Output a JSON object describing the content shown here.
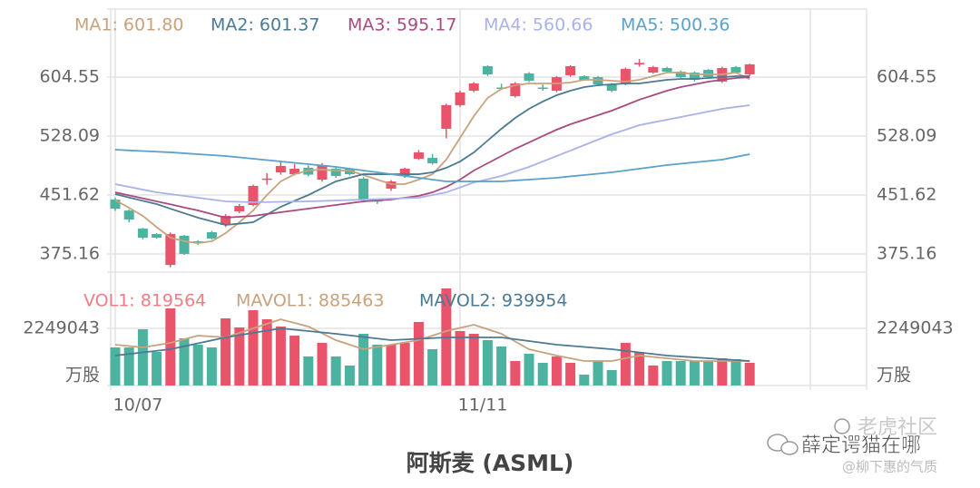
{
  "chart_data": {
    "type": "candlestick",
    "title": "阿斯麦 (ASML)",
    "categories": [
      "10/07",
      null,
      null,
      null,
      null,
      null,
      null,
      null,
      null,
      null,
      null,
      null,
      null,
      null,
      null,
      null,
      null,
      null,
      null,
      null,
      null,
      null,
      null,
      null,
      null,
      "11/11",
      null,
      null,
      null,
      null,
      null,
      null,
      null,
      null,
      null,
      null,
      null,
      null,
      null,
      null,
      null,
      null,
      null,
      null,
      null,
      null,
      null
    ],
    "open": [
      445.7,
      431.5,
      408.0,
      401.0,
      361.0,
      398.7,
      391.6,
      403.4,
      412.8,
      430.4,
      438.6,
      472.0,
      481.0,
      478.6,
      487.0,
      471.6,
      485.7,
      485.7,
      472.8,
      445.0,
      459.9,
      476.3,
      498.6,
      499.8,
      537.5,
      568.1,
      586.9,
      618.7,
      591.0,
      579.8,
      609.3,
      591.0,
      586.9,
      606.9,
      605.7,
      604.5,
      595.1,
      596.3,
      621.0,
      610.4,
      616.3,
      611.6,
      610.4,
      613.9,
      598.7,
      617.5,
      608.1
    ],
    "high": [
      448,
      433,
      409,
      402,
      403,
      400,
      393,
      405,
      427,
      440,
      465,
      480,
      496,
      492,
      490,
      493,
      488,
      487,
      475,
      447,
      471,
      487,
      510,
      505,
      570,
      587,
      598,
      620,
      596,
      598,
      611,
      595,
      606,
      620,
      607,
      606,
      597,
      617,
      628,
      619,
      618,
      613,
      612,
      615,
      618,
      619,
      622
    ],
    "low": [
      431,
      416,
      394,
      395,
      358,
      374,
      387,
      394,
      410,
      428,
      437,
      465,
      478,
      477,
      476,
      469,
      474,
      477,
      444,
      440,
      457,
      474,
      497,
      491,
      525,
      566,
      585,
      606,
      588,
      578,
      598,
      587,
      585,
      605,
      600,
      593,
      585,
      594,
      618,
      609,
      610,
      603,
      599,
      603,
      597,
      609,
      606
    ],
    "close": [
      433.9,
      419.8,
      396.2,
      396.3,
      401.0,
      375.2,
      389.0,
      395.2,
      424.6,
      437.4,
      463.4,
      473.0,
      489.3,
      485.7,
      478.0,
      490.4,
      476.3,
      478.6,
      445.7,
      443.0,
      469.2,
      485.7,
      506.9,
      492.8,
      568.1,
      584.6,
      596.3,
      608.1,
      590.0,
      596.3,
      599.8,
      590.0,
      604.5,
      618.7,
      601.0,
      595.1,
      586.9,
      615.1,
      623.0,
      617.5,
      611.6,
      604.5,
      601.0,
      604.5,
      616.3,
      610.4,
      621.0
    ],
    "up_color": "#e9546b",
    "down_color": "#4db3a1",
    "ylim": [
      351.62,
      692.78
    ],
    "yticks": [
      604.55,
      528.09,
      451.62,
      375.16
    ],
    "series": [
      {
        "name": "MA1: 601.80",
        "color": "#c8a27d",
        "values": [
          445.1,
          435,
          424.6,
          410,
          396.3,
          391.6,
          389.3,
          391.6,
          402.2,
          416.3,
          431.6,
          451.6,
          469.3,
          478.6,
          483.4,
          484.6,
          483.4,
          483.4,
          477.5,
          471.6,
          465.7,
          465.7,
          471.6,
          478.6,
          497.5,
          525.7,
          554.0,
          577.5,
          589.3,
          594.0,
          596.3,
          596.3,
          596.3,
          597.5,
          601.0,
          601.0,
          599.8,
          598.7,
          601.0,
          605.7,
          610.4,
          610.4,
          608.1,
          608.1,
          608.1,
          610.4,
          601.8
        ]
      },
      {
        "name": "MA2: 601.37",
        "color": "#4b7a92",
        "values": [
          452.8,
          448.4,
          444.1,
          439.8,
          433.9,
          428,
          422.2,
          417.5,
          412.8,
          414.5,
          416.3,
          426.3,
          436.3,
          444,
          451.6,
          460.5,
          469.3,
          474,
          478.6,
          478.6,
          478.6,
          478.6,
          478.6,
          481,
          486.9,
          495.1,
          506.9,
          522.2,
          537.5,
          551.6,
          563.4,
          572.8,
          581,
          586.9,
          591.6,
          594,
          595.1,
          596.3,
          596.3,
          598.7,
          601,
          602.2,
          602.2,
          603.4,
          604.5,
          605.7,
          605.7
        ]
      },
      {
        "name": "MA3: 595.17",
        "color": "#a84b80",
        "values": [
          455.1,
          451.2,
          447.3,
          443.4,
          439.5,
          435.5,
          431.6,
          426.9,
          422.2,
          423.4,
          424.6,
          427,
          429.3,
          431.6,
          434,
          436.3,
          438.7,
          441,
          443.4,
          444.6,
          445.7,
          448.1,
          450.4,
          455.1,
          462.2,
          471.6,
          483.4,
          492.8,
          502.2,
          511.6,
          519.8,
          528.1,
          536.3,
          543.4,
          549.3,
          555.1,
          561,
          568.1,
          575.2,
          581,
          586.9,
          591.6,
          595.1,
          598.7,
          601,
          603.4,
          604.5
        ]
      },
      {
        "name": "MA4: 560.66",
        "color": "#aab2e8",
        "values": [
          465.7,
          462.2,
          458.6,
          455.1,
          452.8,
          450.4,
          448.1,
          445.7,
          443.4,
          442.8,
          442.2,
          442.5,
          442.8,
          443.1,
          443.4,
          443.9,
          444.5,
          445.1,
          445.7,
          446.3,
          446.9,
          447.5,
          448.1,
          451.6,
          455.1,
          461.5,
          467.9,
          472.1,
          476.3,
          482.2,
          488.1,
          495.1,
          502.2,
          509.2,
          516.3,
          523.4,
          530.4,
          536.3,
          542.2,
          545.8,
          549.3,
          552.8,
          556.3,
          559.9,
          563.4,
          565.8,
          568.1
        ]
      },
      {
        "name": "MA5: 500.36",
        "color": "#5ba1c9",
        "values": [
          510.4,
          509.5,
          508.7,
          507.8,
          507,
          505.8,
          504.6,
          503.4,
          502.2,
          500.4,
          498.7,
          496.9,
          495.1,
          493.4,
          491.6,
          489.9,
          488.1,
          485.7,
          483.4,
          481,
          478.6,
          476.3,
          474,
          471.6,
          469.3,
          469.3,
          469.3,
          469.3,
          469.3,
          470.5,
          471.6,
          472.8,
          474,
          475.8,
          477.5,
          479.3,
          481,
          483.4,
          485.7,
          488.1,
          490.4,
          492.2,
          494,
          495.7,
          497.5,
          501.1,
          504.6
        ]
      }
    ],
    "volume": {
      "name": "VOL1: 819564",
      "name_color": "#f07d84",
      "unit": "万股",
      "ylim": [
        0,
        3927000
      ],
      "yticks": [
        2249043
      ],
      "values": [
        1499000,
        1499000,
        2213000,
        1321000,
        3034000,
        1856000,
        1606000,
        1499000,
        2642000,
        2285000,
        2963000,
        2606000,
        2320000,
        1963000,
        1142000,
        1678000,
        1142000,
        785000,
        2035000,
        1606000,
        1606000,
        1678000,
        2499000,
        1428000,
        3820000,
        2142000,
        2035000,
        1785000,
        1535000,
        964000,
        1249000,
        892000,
        1142000,
        892000,
        428000,
        964000,
        607000,
        1678000,
        1321000,
        785000,
        964000,
        964000,
        964000,
        964000,
        1071000,
        1035000,
        892000
      ],
      "series": [
        {
          "name": "MAVOL1: 885463",
          "color": "#c8a27d",
          "values": [
            1606000,
            1553000,
            1499000,
            1589000,
            1678000,
            1821000,
            1963000,
            1928000,
            1892000,
            2071000,
            2249000,
            2428000,
            2606000,
            2463000,
            2320000,
            2053000,
            1785000,
            1607000,
            1428000,
            1517000,
            1606000,
            1696000,
            1785000,
            1964000,
            2142000,
            2267000,
            2392000,
            2214000,
            2035000,
            1732000,
            1428000,
            1303000,
            1178000,
            1071000,
            964000,
            964000,
            964000,
            1071000,
            1178000,
            1125000,
            1071000,
            1018000,
            964000,
            964000,
            964000,
            964000,
            964000
          ]
        },
        {
          "name": "MAVOL2: 939954",
          "color": "#4b7a92",
          "values": [
            1178000,
            1241000,
            1303000,
            1366000,
            1428000,
            1544000,
            1660000,
            1776000,
            1892000,
            1981000,
            2071000,
            2160000,
            2249000,
            2196000,
            2142000,
            2089000,
            2035000,
            1973000,
            1910000,
            1848000,
            1785000,
            1812000,
            1839000,
            1865000,
            1892000,
            1892000,
            1892000,
            1892000,
            1892000,
            1821000,
            1749000,
            1678000,
            1606000,
            1562000,
            1517000,
            1473000,
            1428000,
            1366000,
            1303000,
            1241000,
            1178000,
            1142000,
            1107000,
            1071000,
            1035000,
            1000000,
            964000
          ]
        }
      ]
    }
  },
  "watermark": {
    "brand": "老虎社区",
    "author": "薛定谔猫在哪",
    "handle": "@柳下惠的气质"
  }
}
